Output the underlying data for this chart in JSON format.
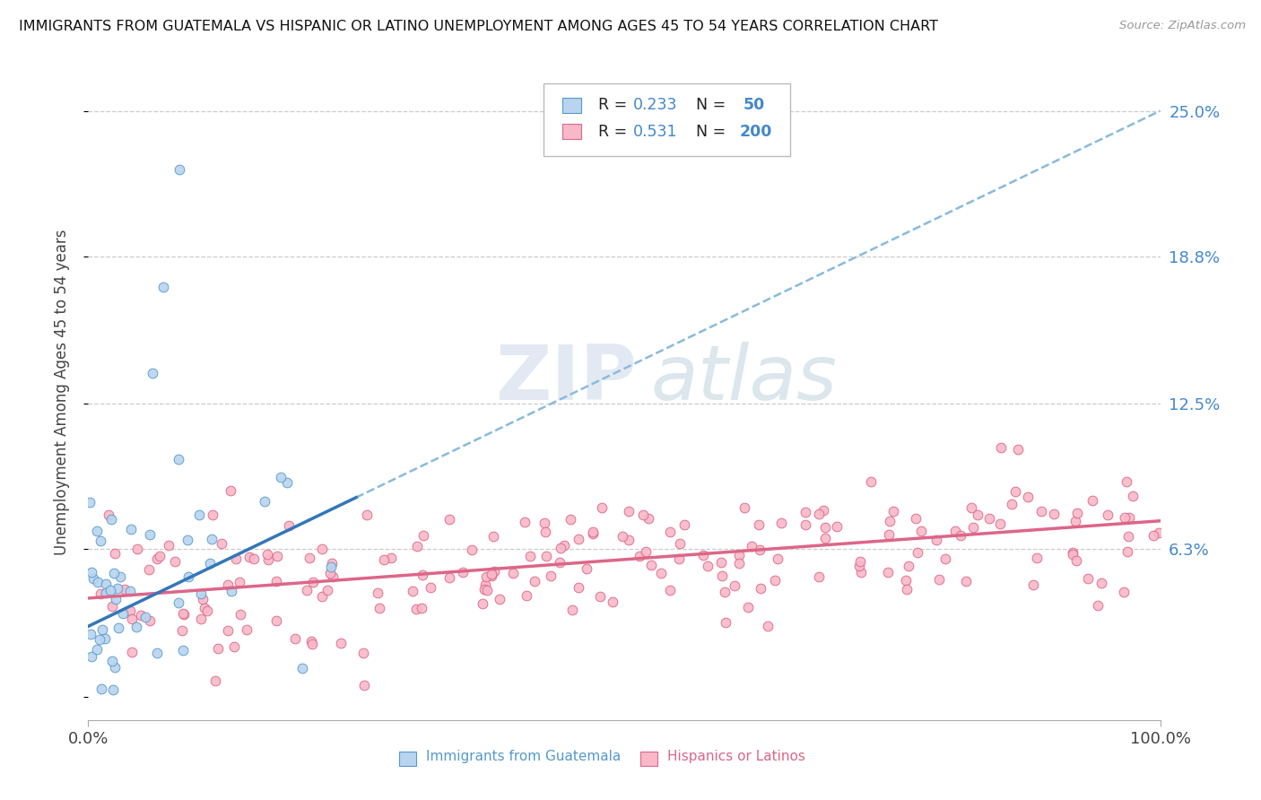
{
  "title": "IMMIGRANTS FROM GUATEMALA VS HISPANIC OR LATINO UNEMPLOYMENT AMONG AGES 45 TO 54 YEARS CORRELATION CHART",
  "source": "Source: ZipAtlas.com",
  "ylabel": "Unemployment Among Ages 45 to 54 years",
  "xlim": [
    0,
    100
  ],
  "ylim": [
    -1,
    27
  ],
  "yticks": [
    0,
    6.3,
    12.5,
    18.8,
    25.0
  ],
  "ytick_labels": [
    "",
    "6.3%",
    "12.5%",
    "18.8%",
    "25.0%"
  ],
  "xtick_labels": [
    "0.0%",
    "100.0%"
  ],
  "color_blue_fill": "#b8d4ee",
  "color_blue_edge": "#5599cc",
  "color_pink_fill": "#f8b8c8",
  "color_pink_edge": "#dd6688",
  "color_line_blue_solid": "#3377bb",
  "color_line_blue_dash": "#88bbdd",
  "color_line_pink": "#dd6688",
  "watermark_zip": "ZIP",
  "watermark_atlas": "atlas",
  "r_guatemala": 0.233,
  "r_hispanic": 0.531,
  "n_guatemala": 50,
  "n_hispanic": 200,
  "blue_line_x0": 0,
  "blue_line_y0": 3.0,
  "blue_line_x1": 25,
  "blue_line_y1": 8.5,
  "blue_dash_x0": 0,
  "blue_dash_y0": 3.0,
  "blue_dash_x1": 100,
  "blue_dash_y1": 25.0,
  "pink_line_x0": 0,
  "pink_line_y0": 4.2,
  "pink_line_x1": 100,
  "pink_line_y1": 7.5
}
